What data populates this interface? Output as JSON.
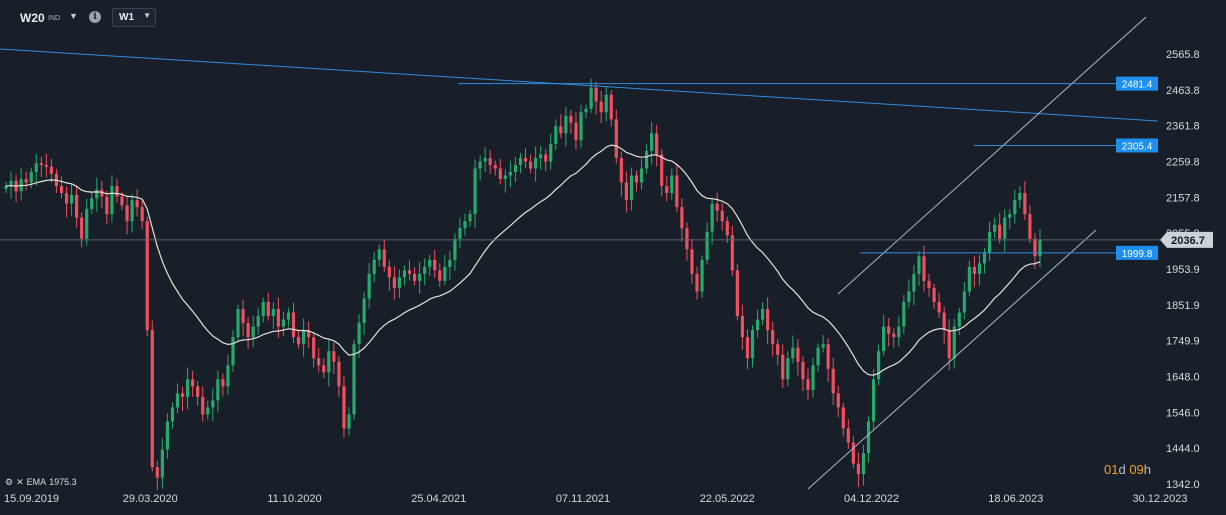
{
  "header": {
    "symbol": "W20",
    "symbol_suffix": "IND",
    "timeframe": "W1"
  },
  "indicator": {
    "name": "EMA",
    "value": "1975.3"
  },
  "countdown": {
    "days": "01",
    "days_unit": "d",
    "hours": "09",
    "hours_unit": "h"
  },
  "colors": {
    "background": "#181f29",
    "bull": "#26a96c",
    "bear": "#ef4f5f",
    "ema": "#e6e2d6",
    "trendline": "#2f8de0",
    "channel": "#aab9c9",
    "label_bg": "#1c8ff0",
    "current_price_bg": "#ccd2d8"
  },
  "chart_data": {
    "type": "candlestick",
    "x_ticks": [
      "15.09.2019",
      "29.03.2020",
      "11.10.2020",
      "25.04.2021",
      "07.11.2021",
      "22.05.2022",
      "04.12.2022",
      "18.06.2023",
      "30.12.2023"
    ],
    "y_ticks": [
      "2565.8",
      "2463.8",
      "2361.8",
      "2259.8",
      "2157.8",
      "2055.8",
      "1953.9",
      "1851.9",
      "1749.9",
      "1648.0",
      "1546.0",
      "1444.0",
      "1342.0"
    ],
    "price_labels": [
      {
        "text": "2481.4",
        "value": 2481.4
      },
      {
        "text": "2305.4",
        "value": 2305.4
      },
      {
        "text": "1999.8",
        "value": 1999.8
      }
    ],
    "current_price": {
      "text": "2036.7",
      "value": 2036.7
    },
    "ema": {
      "name": "EMA",
      "last": 1975.3
    },
    "closes": [
      2190,
      2205,
      2175,
      2210,
      2200,
      2230,
      2255,
      2250,
      2245,
      2225,
      2190,
      2170,
      2140,
      2165,
      2100,
      2040,
      2125,
      2155,
      2180,
      2160,
      2110,
      2190,
      2160,
      2135,
      2090,
      2150,
      2130,
      2090,
      1780,
      1390,
      1360,
      1440,
      1520,
      1560,
      1600,
      1590,
      1640,
      1620,
      1590,
      1540,
      1560,
      1580,
      1640,
      1620,
      1680,
      1760,
      1840,
      1800,
      1760,
      1790,
      1820,
      1860,
      1820,
      1840,
      1790,
      1810,
      1830,
      1760,
      1740,
      1780,
      1760,
      1700,
      1680,
      1660,
      1720,
      1690,
      1620,
      1500,
      1540,
      1740,
      1800,
      1870,
      1940,
      1980,
      2010,
      1960,
      1930,
      1900,
      1930,
      1950,
      1940,
      1920,
      1940,
      1960,
      1980,
      1950,
      1920,
      1960,
      1980,
      2040,
      2070,
      2090,
      2110,
      2240,
      2260,
      2270,
      2250,
      2240,
      2210,
      2220,
      2230,
      2250,
      2270,
      2260,
      2240,
      2270,
      2280,
      2260,
      2310,
      2360,
      2340,
      2390,
      2370,
      2320,
      2400,
      2410,
      2470,
      2430,
      2400,
      2450,
      2380,
      2270,
      2200,
      2150,
      2220,
      2200,
      2240,
      2290,
      2340,
      2280,
      2190,
      2170,
      2220,
      2130,
      2070,
      2010,
      1940,
      1890,
      1980,
      2060,
      2140,
      2120,
      2090,
      2050,
      1950,
      1820,
      1760,
      1700,
      1780,
      1810,
      1840,
      1780,
      1740,
      1710,
      1640,
      1700,
      1730,
      1690,
      1640,
      1610,
      1680,
      1730,
      1740,
      1670,
      1600,
      1560,
      1500,
      1460,
      1400,
      1370,
      1430,
      1520,
      1640,
      1720,
      1790,
      1770,
      1760,
      1790,
      1860,
      1890,
      1940,
      1990,
      1920,
      1900,
      1860,
      1830,
      1780,
      1700,
      1790,
      1830,
      1890,
      1960,
      1940,
      1970,
      2000,
      2060,
      2080,
      2040,
      2100,
      2110,
      2150,
      2170,
      2110,
      2040,
      1990,
      2036.7
    ]
  }
}
